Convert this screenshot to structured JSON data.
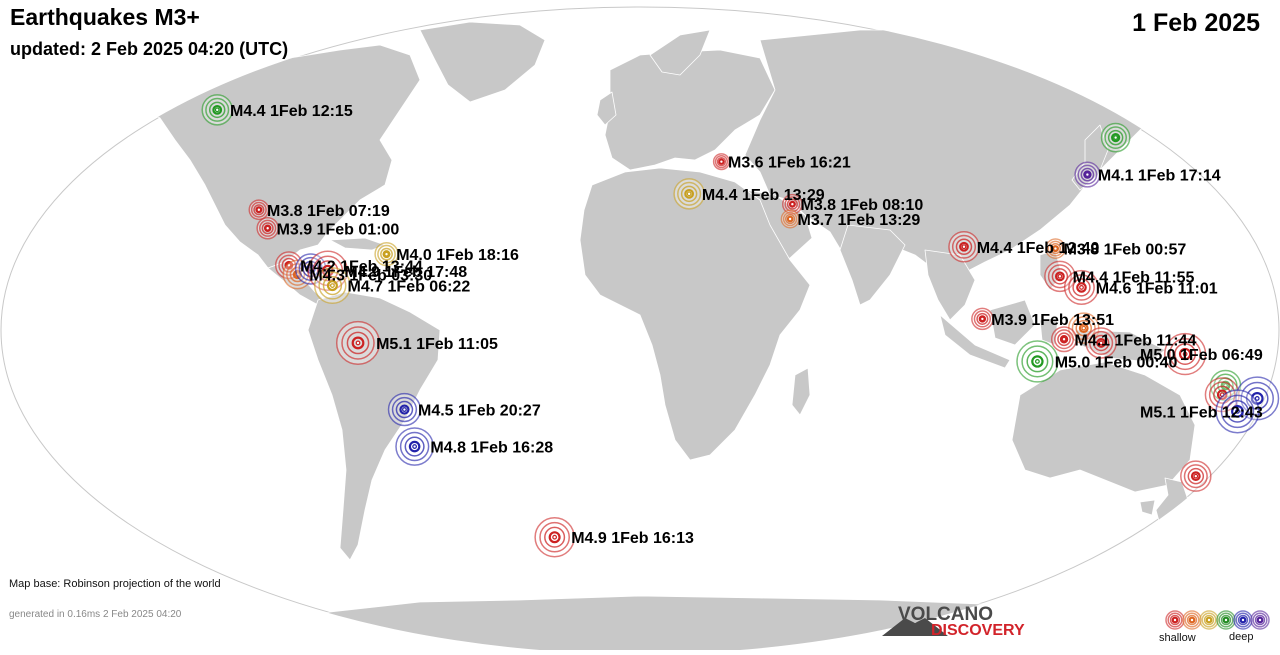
{
  "header": {
    "title": "Earthquakes M3+",
    "updated": "updated:  2 Feb 2025 04:20 (UTC)",
    "date": "1 Feb 2025"
  },
  "footer": {
    "map_base": "Map base: Robinson projection of the world",
    "generated": "generated in 0.16ms  2 Feb 2025 04:20"
  },
  "logo": {
    "line1": "VOLCANO",
    "line2": "DISCOVERY"
  },
  "legend": {
    "shallow_label": "shallow",
    "deep_label": "deep",
    "colors": [
      "#cc2222",
      "#dd6622",
      "#c8a020",
      "#228b22",
      "#2222aa",
      "#552299"
    ]
  },
  "map": {
    "ocean_color": "#ffffff",
    "land_color": "#c8c8c8",
    "border_color": "#ffffff"
  },
  "quakes": [
    {
      "label": "M4.4  1Feb 12:15",
      "mag": 4.4,
      "lat": 59.5,
      "lon": -153.0,
      "color": "#229922"
    },
    {
      "label": "M3.6  1Feb 16:21",
      "mag": 3.6,
      "lat": 45.5,
      "lon": 26.5,
      "color": "#cc2222"
    },
    {
      "label": "M4.1  1Feb 17:14",
      "mag": 4.1,
      "lat": 42.0,
      "lon": 142.5,
      "color": "#552299"
    },
    {
      "label": "",
      "mag": 4.3,
      "lat": 52.0,
      "lon": 162.0,
      "color": "#229922"
    },
    {
      "label": "M3.8  1Feb 07:19",
      "mag": 3.8,
      "lat": 32.5,
      "lon": -115.5,
      "color": "#cc2222"
    },
    {
      "label": "M3.9  1Feb 01:00",
      "mag": 3.9,
      "lat": 27.5,
      "lon": -110.5,
      "color": "#cc2222"
    },
    {
      "label": "M4.4  1Feb 13:29",
      "mag": 4.4,
      "lat": 36.8,
      "lon": 15.2,
      "color": "#c8a020"
    },
    {
      "label": "M3.8  1Feb 08:10",
      "mag": 3.8,
      "lat": 34.0,
      "lon": 46.5,
      "color": "#cc2222"
    },
    {
      "label": "M3.7  1Feb 13:29",
      "mag": 3.7,
      "lat": 30.0,
      "lon": 45.0,
      "color": "#dd6622"
    },
    {
      "label": "M4.0  1Feb 18:16",
      "mag": 4.0,
      "lat": 20.5,
      "lon": -73.5,
      "color": "#c8a020"
    },
    {
      "label": "M4.2  1Feb 13:44",
      "mag": 4.2,
      "lat": 17.5,
      "lon": -101.0,
      "color": "#cc2222"
    },
    {
      "label": "M4.3  1Feb 03:30",
      "mag": 4.3,
      "lat": 15.0,
      "lon": -98.0,
      "color": "#dd6622"
    },
    {
      "label": "",
      "mag": 4.4,
      "lat": 16.5,
      "lon": -94.5,
      "color": "#2222aa"
    },
    {
      "label": "M4.9  1Feb 17:48",
      "mag": 4.9,
      "lat": 16.0,
      "lon": -89.5,
      "color": "#cc2222"
    },
    {
      "label": "M4.7  1Feb 06:22",
      "mag": 4.7,
      "lat": 12.0,
      "lon": -87.5,
      "color": "#c8a020"
    },
    {
      "label": "M4.4  1Feb 12:40",
      "mag": 4.4,
      "lat": 22.5,
      "lon": 94.5,
      "color": "#cc2222"
    },
    {
      "label": "M3.8  1Feb 00:57",
      "mag": 3.8,
      "lat": 22.0,
      "lon": 121.0,
      "color": "#dd6622"
    },
    {
      "label": "M4.4  1Feb 11:55",
      "mag": 4.4,
      "lat": 14.5,
      "lon": 120.0,
      "color": "#cc2222"
    },
    {
      "label": "M4.6  1Feb 11:01",
      "mag": 4.6,
      "lat": 11.5,
      "lon": 125.5,
      "color": "#cc2222"
    },
    {
      "label": "M3.9  1Feb 13:51",
      "mag": 3.9,
      "lat": 3.0,
      "lon": 96.5,
      "color": "#cc2222"
    },
    {
      "label": "",
      "mag": 4.4,
      "lat": 0.5,
      "lon": 125.0,
      "color": "#dd6622"
    },
    {
      "label": "M4.1  1Feb 11:44",
      "mag": 4.1,
      "lat": -2.5,
      "lon": 119.5,
      "color": "#cc2222"
    },
    {
      "label": "",
      "mag": 4.4,
      "lat": -3.5,
      "lon": 130.0,
      "color": "#cc2222"
    },
    {
      "label": "M5.0  1Feb 00:40",
      "mag": 5.0,
      "lat": -8.5,
      "lon": 112.5,
      "color": "#229922"
    },
    {
      "label": "M5.0  1Feb 06:49",
      "mag": 5.0,
      "lat": -6.5,
      "lon": 154.0,
      "color": "#cc2222"
    },
    {
      "label": "M5.1  1Feb 11:05",
      "mag": 5.1,
      "lat": -3.5,
      "lon": -79.5,
      "color": "#cc2222"
    },
    {
      "label": "M4.5  1Feb 20:27",
      "mag": 4.5,
      "lat": -21.5,
      "lon": -68.5,
      "color": "#2222aa"
    },
    {
      "label": "M4.8  1Feb 16:28",
      "mag": 4.8,
      "lat": -31.5,
      "lon": -68.0,
      "color": "#2222aa"
    },
    {
      "label": "",
      "mag": 4.4,
      "lat": -15.0,
      "lon": 167.5,
      "color": "#229922"
    },
    {
      "label": "",
      "mag": 4.6,
      "lat": -17.5,
      "lon": 167.5,
      "color": "#cc2222"
    },
    {
      "label": "",
      "mag": 5.1,
      "lat": -18.5,
      "lon": 178.0,
      "color": "#2222aa"
    },
    {
      "label": "M5.1  1Feb 12:43",
      "mag": 5.1,
      "lat": -22.0,
      "lon": 174.0,
      "color": "#2222aa"
    },
    {
      "label": "",
      "mag": 4.4,
      "lat": -39.5,
      "lon": 174.5,
      "color": "#cc2222"
    },
    {
      "label": "M4.9  1Feb 16:13",
      "mag": 4.9,
      "lat": -56.0,
      "lon": -30.0,
      "color": "#cc2222"
    }
  ]
}
